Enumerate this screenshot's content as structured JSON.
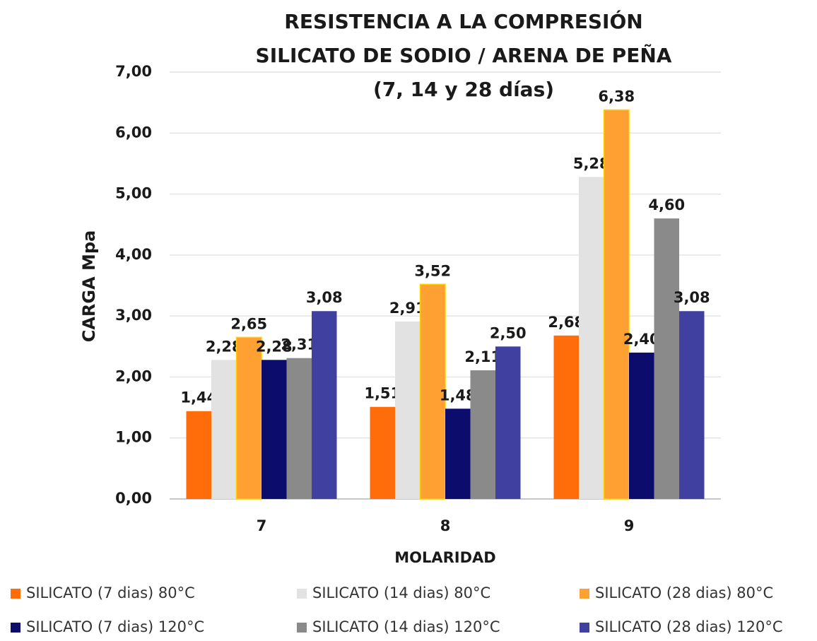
{
  "chart_data": {
    "type": "bar",
    "title_lines": [
      "RESISTENCIA A LA COMPRESIÓN",
      "SILICATO DE SODIO / ARENA DE PEÑA",
      "(7, 14 y 28 días)"
    ],
    "x_label": "MOLARIDAD",
    "y_label": "CARGA Mpa",
    "categories": [
      "7",
      "8",
      "9"
    ],
    "ylim": [
      0,
      7
    ],
    "yticks": [
      {
        "value": 0,
        "label": "0,00"
      },
      {
        "value": 1,
        "label": "1,00"
      },
      {
        "value": 2,
        "label": "2,00"
      },
      {
        "value": 3,
        "label": "3,00"
      },
      {
        "value": 4,
        "label": "4,00"
      },
      {
        "value": 5,
        "label": "5,00"
      },
      {
        "value": 6,
        "label": "6,00"
      },
      {
        "value": 7,
        "label": "7,00"
      }
    ],
    "grid": true,
    "legend": "bottom",
    "series": [
      {
        "name": "SILICATO (7 dias) 80°C",
        "color": "#ff6d0a",
        "values": [
          1.44,
          1.51,
          2.68
        ],
        "value_labels": [
          "1,44",
          "1,51",
          "2,68"
        ]
      },
      {
        "name": "SILICATO (14 dias) 80°C",
        "color": "#e2e2e2",
        "values": [
          2.28,
          2.91,
          5.28
        ],
        "value_labels": [
          "2,28",
          "2,91",
          "5,28"
        ]
      },
      {
        "name": "SILICATO (28 dias) 80°C",
        "color": "#ffa033",
        "values": [
          2.65,
          3.52,
          6.38
        ],
        "value_labels": [
          "2,65",
          "3,52",
          "6,38"
        ]
      },
      {
        "name": "SILICATO (7 dias) 120°C",
        "color": "#0c0c6c",
        "values": [
          2.28,
          1.48,
          2.4
        ],
        "value_labels": [
          "2,28",
          "1,48",
          "2,40"
        ]
      },
      {
        "name": "SILICATO (14 dias) 120°C",
        "color": "#8a8a8a",
        "values": [
          2.31,
          2.11,
          4.6
        ],
        "value_labels": [
          "2,31",
          "2,11",
          "4,60"
        ]
      },
      {
        "name": "SILICATO (28 dias) 120°C",
        "color": "#4040a0",
        "values": [
          3.08,
          2.5,
          3.08
        ],
        "value_labels": [
          "3,08",
          "2,50",
          "3,08"
        ]
      }
    ]
  }
}
